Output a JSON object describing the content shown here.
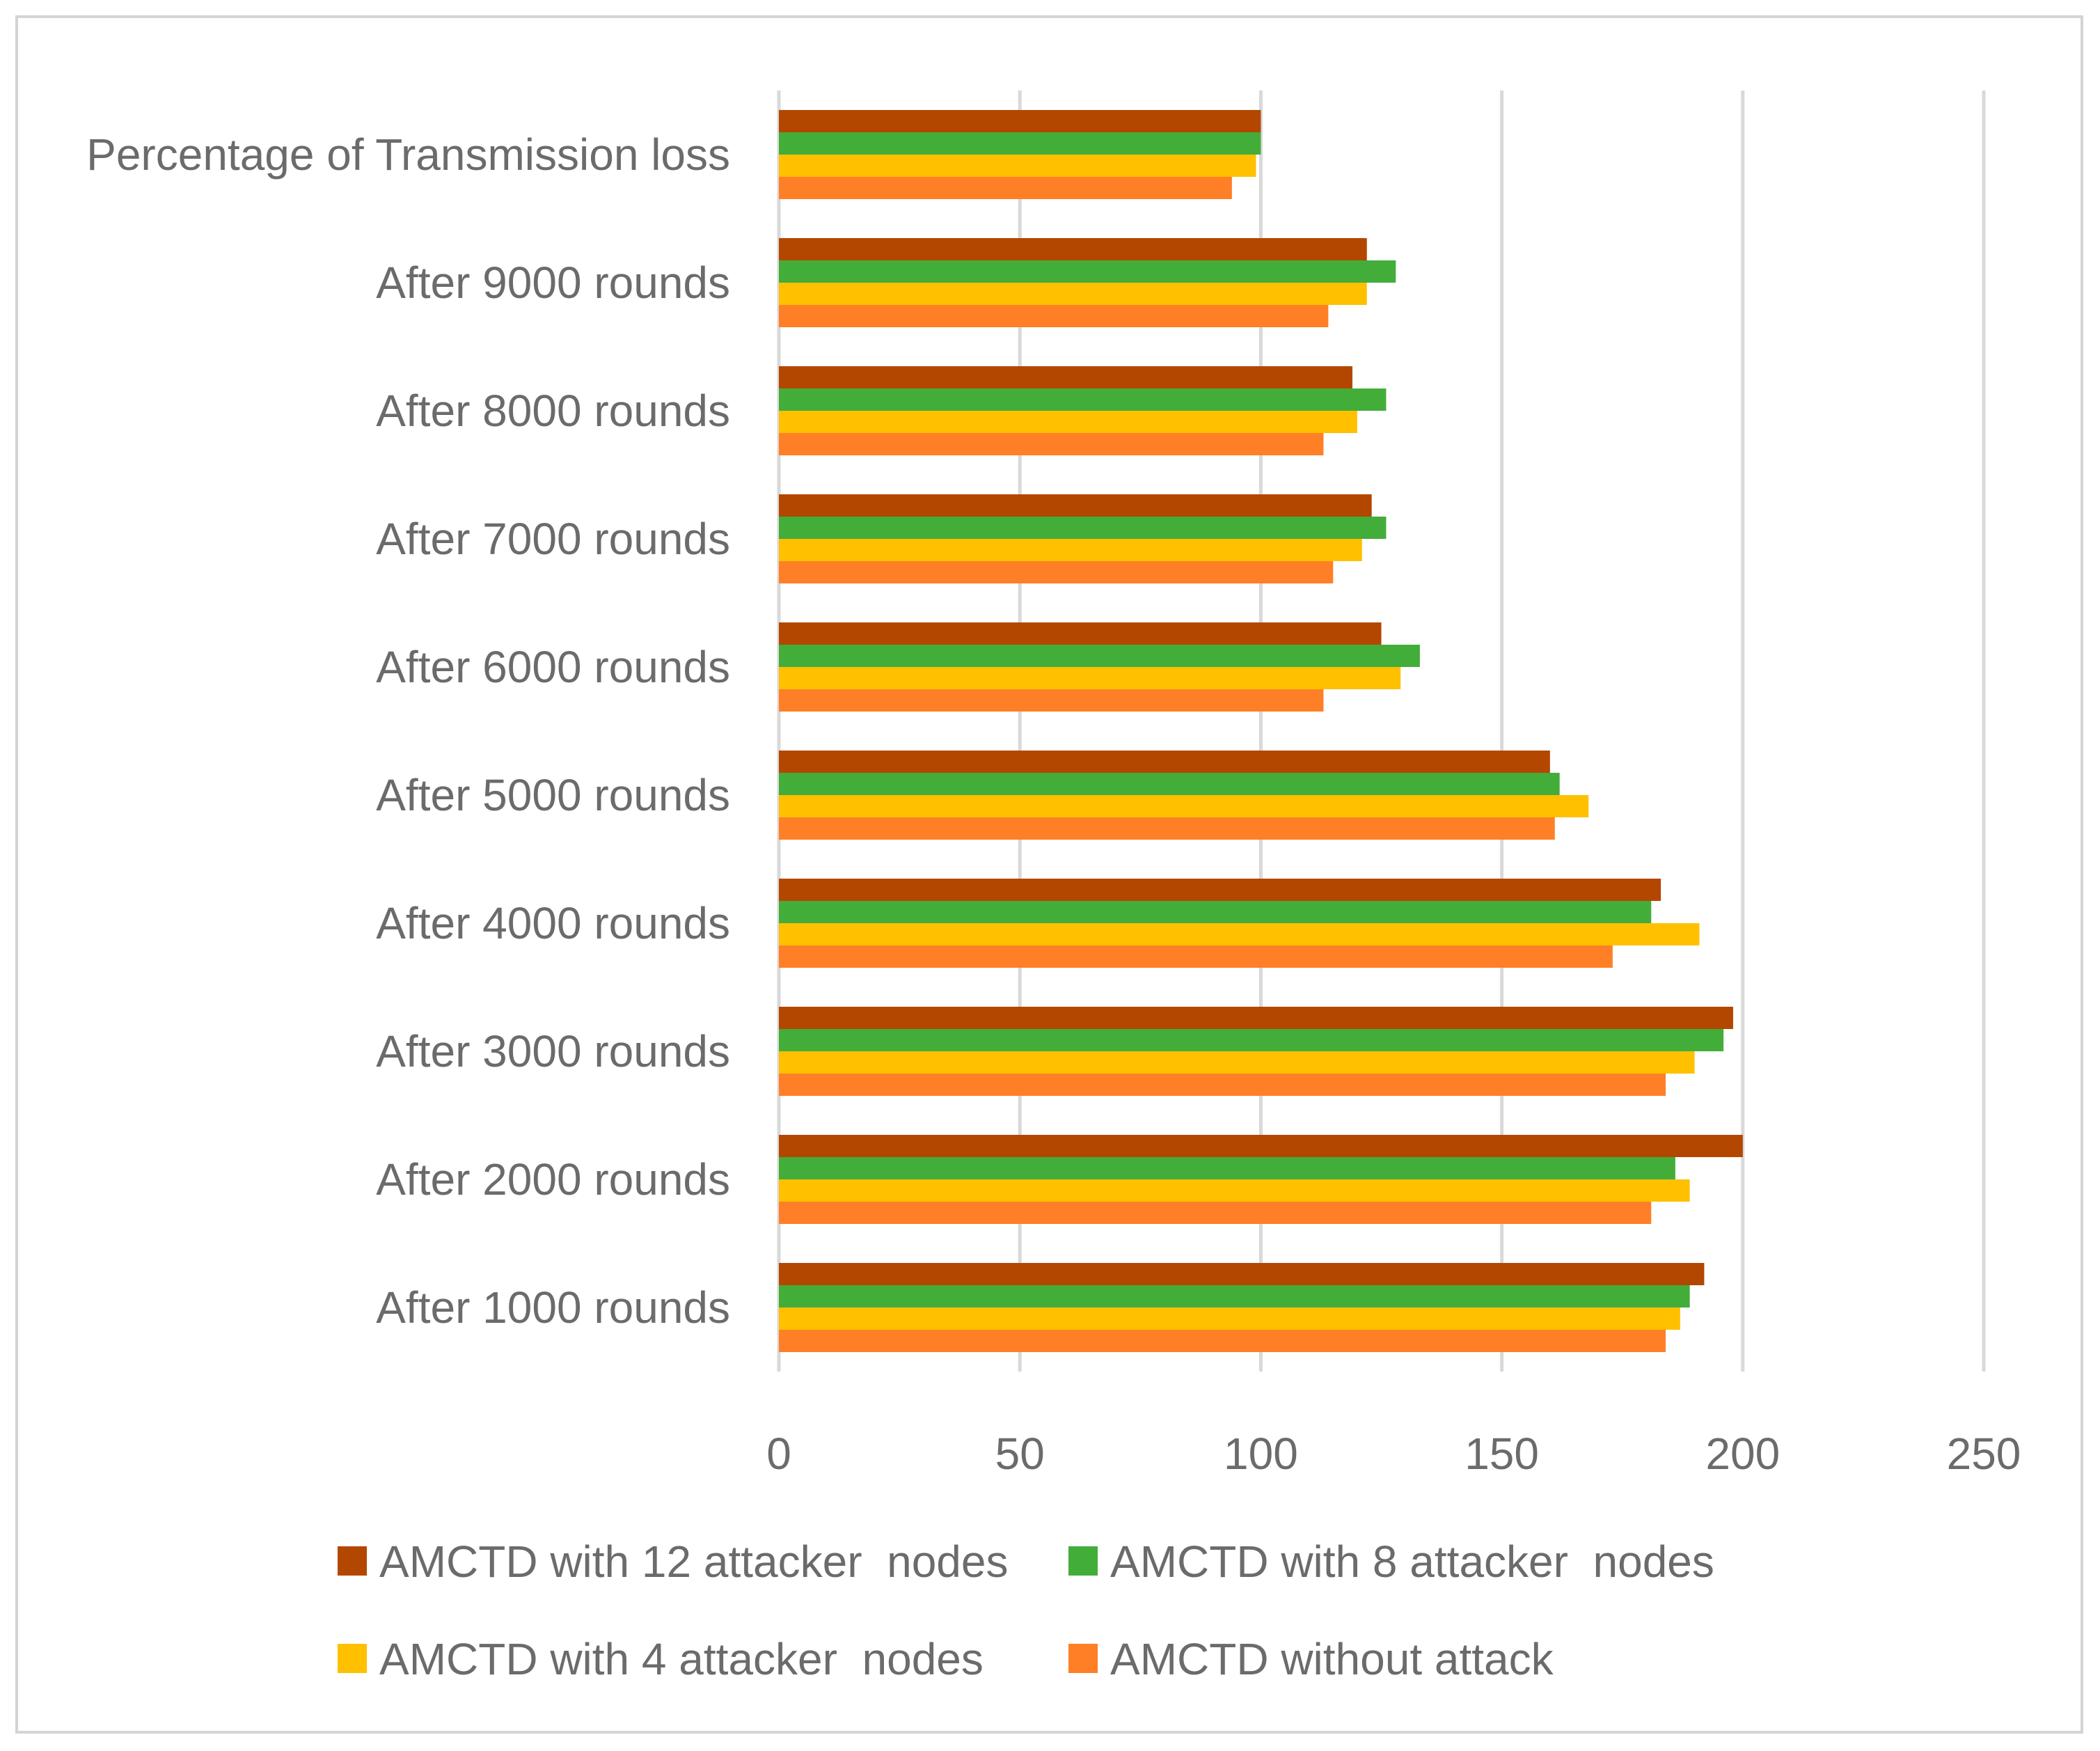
{
  "chart_data": {
    "type": "bar",
    "orientation": "horizontal",
    "title": "",
    "xlabel": "",
    "ylabel": "",
    "xlim": [
      0,
      250
    ],
    "xticks": [
      0,
      50,
      100,
      150,
      200,
      250
    ],
    "grid": true,
    "legend_position": "bottom",
    "categories": [
      "After 1000 rounds",
      "After 2000 rounds",
      "After 3000 rounds",
      "After 4000 rounds",
      "After 5000 rounds",
      "After 6000 rounds",
      "After 7000 rounds",
      "After 8000 rounds",
      "After 9000 rounds",
      "Percentage of Transmission loss"
    ],
    "series": [
      {
        "name": "AMCTD with 12 attacker  nodes",
        "color": "#b34700",
        "values": [
          192,
          200,
          198,
          183,
          160,
          125,
          123,
          119,
          122,
          100
        ]
      },
      {
        "name": "AMCTD with 8 attacker  nodes",
        "color": "#43ad3a",
        "values": [
          189,
          186,
          196,
          181,
          162,
          133,
          126,
          126,
          128,
          100
        ]
      },
      {
        "name": "AMCTD with 4 attacker  nodes",
        "color": "#ffc000",
        "values": [
          187,
          189,
          190,
          191,
          168,
          129,
          121,
          120,
          122,
          99
        ]
      },
      {
        "name": "AMCTD without attack",
        "color": "#ff7f27",
        "values": [
          184,
          181,
          184,
          173,
          161,
          113,
          115,
          113,
          114,
          94
        ]
      }
    ]
  }
}
